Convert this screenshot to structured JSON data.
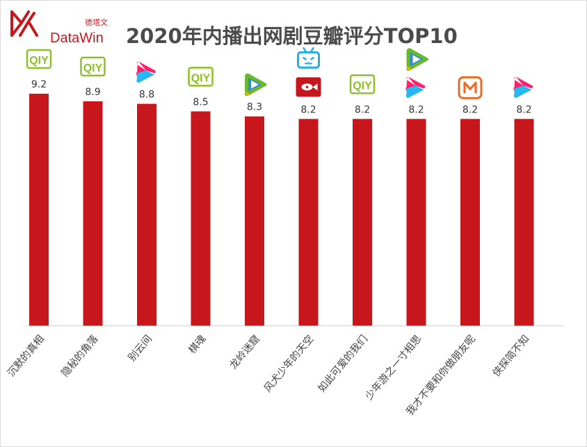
{
  "brand": {
    "name_en": "DataWin",
    "name_cn": "德塔文"
  },
  "chart_data": {
    "type": "bar",
    "title": "2020年内播出网剧豆瓣评分TOP10",
    "categories": [
      "沉默的真相",
      "隐秘的角落",
      "别云间",
      "棋魂",
      "龙岭迷窟",
      "风犬少年的天空",
      "如此可爱的我们",
      "少年游之一寸相思",
      "我才不要和你做朋友呢",
      "侠探简不知"
    ],
    "values": [
      9.2,
      8.9,
      8.8,
      8.5,
      8.3,
      8.2,
      8.2,
      8.2,
      8.2,
      8.2
    ],
    "platforms": [
      [
        "iqiyi"
      ],
      [
        "iqiyi"
      ],
      [
        "youku"
      ],
      [
        "iqiyi"
      ],
      [
        "tencent"
      ],
      [
        "bilibili",
        "youku-red"
      ],
      [
        "iqiyi"
      ],
      [
        "tencent",
        "youku"
      ],
      [
        "mgtv"
      ],
      [
        "youku"
      ]
    ],
    "platform_label_iqiyi": "QIY",
    "ylim": [
      0,
      10
    ],
    "grid": false,
    "legend": "none",
    "colors": {
      "bar": "#c8161d",
      "iqiyi": "#8bc21f",
      "youku": "#ff1f6b",
      "youku_blue": "#28b7f0",
      "tencent_green": "#6ab92c",
      "tencent_blue": "#2d8bd8",
      "tencent_yellow": "#f7b500",
      "bilibili": "#23ade5",
      "mgtv": "#ef6a24",
      "youku_red": "#c8161d"
    }
  }
}
